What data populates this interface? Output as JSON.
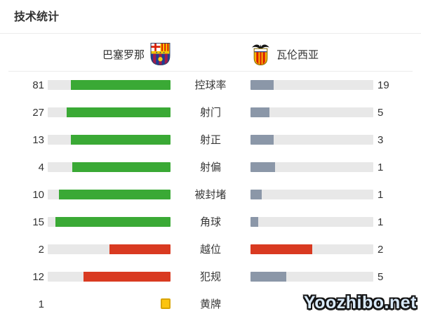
{
  "page": {
    "title": "技术统计",
    "watermark": "Yoozhibo.net"
  },
  "teams": {
    "home": {
      "name": "巴塞罗那",
      "crest_icon": "barcelona-crest-icon"
    },
    "away": {
      "name": "瓦伦西亚",
      "crest_icon": "valencia-crest-icon"
    }
  },
  "colors": {
    "green": "#3aa935",
    "red": "#d93a21",
    "slate": "#8b97a8",
    "track": "#e8e8e8",
    "card_yellow": "#fcc40d",
    "card_border": "#d9a400",
    "text": "#333333",
    "divider": "#ececec"
  },
  "chart_data": {
    "type": "bar",
    "title": "技术统计",
    "legend": [
      "巴塞罗那",
      "瓦伦西亚"
    ],
    "layout": "mirrored horizontal bars, fill proportional to each team's share of the stat total",
    "rows": [
      {
        "label": "控球率",
        "home": {
          "value": "81",
          "pct": 81,
          "color": "green"
        },
        "away": {
          "value": "19",
          "pct": 19,
          "color": "slate"
        }
      },
      {
        "label": "射门",
        "home": {
          "value": "27",
          "pct": 84.4,
          "color": "green"
        },
        "away": {
          "value": "5",
          "pct": 15.6,
          "color": "slate"
        }
      },
      {
        "label": "射正",
        "home": {
          "value": "13",
          "pct": 81.3,
          "color": "green"
        },
        "away": {
          "value": "3",
          "pct": 18.7,
          "color": "slate"
        }
      },
      {
        "label": "射偏",
        "home": {
          "value": "4",
          "pct": 80,
          "color": "green"
        },
        "away": {
          "value": "1",
          "pct": 20,
          "color": "slate"
        }
      },
      {
        "label": "被封堵",
        "home": {
          "value": "10",
          "pct": 90.9,
          "color": "green"
        },
        "away": {
          "value": "1",
          "pct": 9.1,
          "color": "slate"
        }
      },
      {
        "label": "角球",
        "home": {
          "value": "15",
          "pct": 93.8,
          "color": "green"
        },
        "away": {
          "value": "1",
          "pct": 6.2,
          "color": "slate"
        }
      },
      {
        "label": "越位",
        "home": {
          "value": "2",
          "pct": 50,
          "color": "red"
        },
        "away": {
          "value": "2",
          "pct": 50,
          "color": "red"
        }
      },
      {
        "label": "犯规",
        "home": {
          "value": "12",
          "pct": 70.6,
          "color": "red"
        },
        "away": {
          "value": "5",
          "pct": 29.4,
          "color": "slate"
        }
      },
      {
        "label": "黄牌",
        "home": {
          "value": "1",
          "card": "yellow"
        },
        "away": {
          "value": "",
          "none": true
        }
      }
    ]
  }
}
